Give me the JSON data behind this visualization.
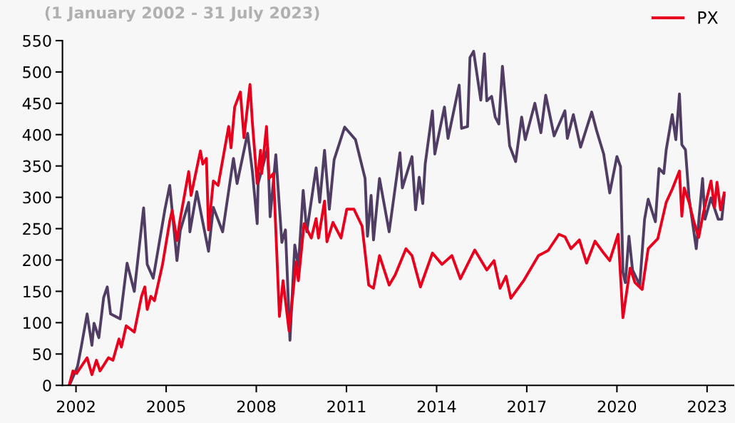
{
  "chart_data": {
    "type": "line",
    "subtitle": "(1 January 2002 - 31 July 2023)",
    "xlim": [
      2001.55,
      2023.88
    ],
    "xticks": [
      2002,
      2005,
      2008,
      2011,
      2014,
      2017,
      2020,
      2023
    ],
    "ylim": [
      0,
      550
    ],
    "yticks": [
      0,
      50,
      100,
      150,
      200,
      250,
      300,
      350,
      400,
      450,
      500,
      550
    ],
    "grid": false,
    "legend": "top right",
    "line_style": "solid",
    "marker": "none",
    "series": [
      {
        "color": "#4f3d63",
        "x": [
          2001.78,
          2002.05,
          2002.17,
          2002.37,
          2002.53,
          2002.6,
          2002.76,
          2002.92,
          2003.04,
          2003.15,
          2003.47,
          2003.7,
          2003.94,
          2004.25,
          2004.37,
          2004.57,
          2004.96,
          2005.12,
          2005.36,
          2005.47,
          2005.75,
          2005.79,
          2006.02,
          2006.22,
          2006.41,
          2006.57,
          2006.88,
          2007.24,
          2007.36,
          2007.71,
          2007.87,
          2008.03,
          2008.06,
          2008.38,
          2008.46,
          2008.65,
          2008.85,
          2008.97,
          2009.12,
          2009.28,
          2009.4,
          2009.56,
          2009.68,
          2009.99,
          2010.11,
          2010.27,
          2010.43,
          2010.59,
          2010.94,
          2011.3,
          2011.62,
          2011.7,
          2011.82,
          2011.9,
          2012.1,
          2012.42,
          2012.78,
          2012.86,
          2013.18,
          2013.3,
          2013.42,
          2013.54,
          2013.62,
          2013.86,
          2013.94,
          2014.26,
          2014.38,
          2014.75,
          2014.83,
          2015.03,
          2015.11,
          2015.23,
          2015.47,
          2015.59,
          2015.67,
          2015.83,
          2015.95,
          2016.07,
          2016.19,
          2016.43,
          2016.63,
          2016.83,
          2016.95,
          2017.27,
          2017.47,
          2017.63,
          2017.91,
          2018.27,
          2018.35,
          2018.55,
          2018.79,
          2019.16,
          2019.32,
          2019.56,
          2019.76,
          2020.0,
          2020.12,
          2020.2,
          2020.28,
          2020.4,
          2020.52,
          2020.76,
          2020.92,
          2021.04,
          2021.28,
          2021.4,
          2021.56,
          2021.64,
          2021.84,
          2021.96,
          2022.08,
          2022.16,
          2022.28,
          2022.4,
          2022.64,
          2022.85,
          2022.93,
          2023.13,
          2023.37,
          2023.49,
          2023.57
        ],
        "values": [
          0,
          30,
          60,
          114,
          64,
          99,
          76,
          140,
          157,
          114,
          106,
          195,
          150,
          283,
          193,
          171,
          281,
          319,
          199,
          247,
          292,
          245,
          309,
          260,
          214,
          284,
          245,
          362,
          322,
          402,
          341,
          258,
          322,
          379,
          269,
          368,
          228,
          248,
          72,
          224,
          190,
          311,
          245,
          347,
          292,
          375,
          281,
          360,
          412,
          392,
          330,
          238,
          303,
          232,
          330,
          245,
          371,
          315,
          365,
          280,
          332,
          290,
          353,
          438,
          369,
          444,
          394,
          479,
          410,
          413,
          523,
          533,
          455,
          529,
          454,
          461,
          428,
          417,
          509,
          382,
          357,
          428,
          392,
          450,
          403,
          463,
          398,
          438,
          394,
          432,
          380,
          436,
          407,
          369,
          307,
          365,
          349,
          180,
          164,
          238,
          184,
          160,
          265,
          297,
          261,
          346,
          338,
          376,
          432,
          392,
          465,
          384,
          376,
          299,
          218,
          330,
          265,
          299,
          265,
          265,
          303
        ]
      },
      {
        "name": "PX",
        "color": "#e8001c",
        "x": [
          2001.77,
          2001.9,
          2002.02,
          2002.37,
          2002.53,
          2002.68,
          2002.8,
          2003.08,
          2003.23,
          2003.43,
          2003.51,
          2003.67,
          2003.94,
          2004.18,
          2004.29,
          2004.37,
          2004.49,
          2004.61,
          2004.88,
          2005.12,
          2005.2,
          2005.36,
          2005.47,
          2005.75,
          2005.83,
          2006.14,
          2006.22,
          2006.34,
          2006.41,
          2006.57,
          2006.73,
          2007.08,
          2007.16,
          2007.28,
          2007.47,
          2007.59,
          2007.79,
          2007.87,
          2008.03,
          2008.14,
          2008.18,
          2008.34,
          2008.42,
          2008.57,
          2008.77,
          2008.89,
          2009.09,
          2009.24,
          2009.32,
          2009.4,
          2009.59,
          2009.83,
          2009.99,
          2010.07,
          2010.27,
          2010.35,
          2010.55,
          2010.82,
          2011.01,
          2011.25,
          2011.52,
          2011.66,
          2011.74,
          2011.9,
          2012.1,
          2012.42,
          2012.62,
          2012.98,
          2013.18,
          2013.46,
          2013.86,
          2014.18,
          2014.51,
          2014.79,
          2015.27,
          2015.67,
          2015.91,
          2016.11,
          2016.31,
          2016.47,
          2016.91,
          2017.39,
          2017.71,
          2018.07,
          2018.27,
          2018.47,
          2018.75,
          2018.99,
          2019.27,
          2019.56,
          2019.76,
          2020.04,
          2020.2,
          2020.44,
          2020.6,
          2020.84,
          2021.04,
          2021.36,
          2021.64,
          2021.84,
          2022.08,
          2022.16,
          2022.24,
          2022.4,
          2022.56,
          2022.72,
          2022.88,
          2023.13,
          2023.25,
          2023.33,
          2023.45,
          2023.57
        ],
        "values": [
          0,
          23,
          19,
          44,
          17,
          40,
          23,
          44,
          40,
          74,
          61,
          95,
          85,
          142,
          157,
          121,
          142,
          135,
          193,
          262,
          279,
          231,
          266,
          341,
          303,
          374,
          353,
          362,
          248,
          326,
          319,
          413,
          379,
          444,
          468,
          395,
          480,
          419,
          322,
          375,
          338,
          413,
          330,
          338,
          110,
          167,
          87,
          156,
          197,
          167,
          258,
          235,
          266,
          235,
          294,
          229,
          260,
          235,
          281,
          281,
          254,
          195,
          160,
          155,
          207,
          160,
          176,
          218,
          207,
          157,
          211,
          193,
          207,
          170,
          216,
          184,
          199,
          155,
          174,
          139,
          168,
          207,
          215,
          241,
          237,
          218,
          232,
          195,
          230,
          211,
          199,
          241,
          108,
          187,
          164,
          153,
          218,
          234,
          292,
          313,
          342,
          270,
          315,
          292,
          261,
          236,
          276,
          326,
          284,
          324,
          280,
          307
        ]
      }
    ]
  }
}
